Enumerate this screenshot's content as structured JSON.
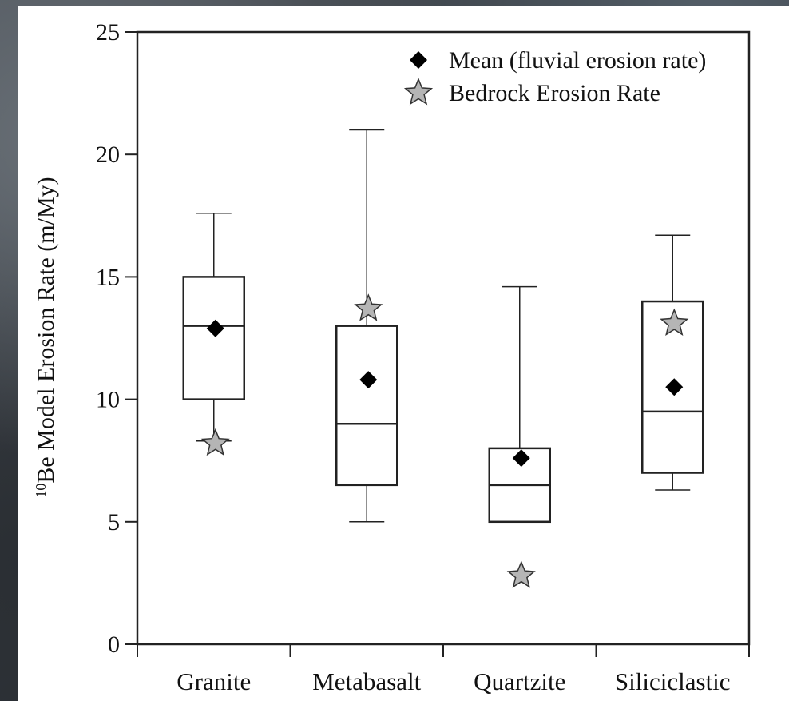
{
  "chart_data": {
    "type": "box",
    "title": "",
    "xlabel": "",
    "ylabel": "Be Model Erosion Rate (m/My)",
    "ylabel_superscript": "10",
    "ylim": [
      0,
      25
    ],
    "yticks": [
      "0",
      "5",
      "10",
      "15",
      "20",
      "25"
    ],
    "categories": [
      "Granite",
      "Metabasalt",
      "Quartzite",
      "Siliciclastic"
    ],
    "boxes": [
      {
        "category": "Granite",
        "whisker_low": 8.3,
        "q1": 10.0,
        "median": 13.0,
        "q3": 15.0,
        "whisker_high": 17.6
      },
      {
        "category": "Metabasalt",
        "whisker_low": 5.0,
        "q1": 6.5,
        "median": 9.0,
        "q3": 13.0,
        "whisker_high": 21.0
      },
      {
        "category": "Quartzite",
        "whisker_low": 5.0,
        "q1": 5.0,
        "median": 6.5,
        "q3": 8.0,
        "whisker_high": 14.6
      },
      {
        "category": "Siliciclastic",
        "whisker_low": 6.3,
        "q1": 7.0,
        "median": 9.5,
        "q3": 14.0,
        "whisker_high": 16.7
      }
    ],
    "series": [
      {
        "name": "Mean (fluvial erosion rate)",
        "marker": "diamond",
        "color": "#000000",
        "values": [
          12.9,
          10.8,
          7.6,
          10.5
        ]
      },
      {
        "name": "Bedrock Erosion Rate",
        "marker": "star",
        "color": "#b5b5b5",
        "values": [
          8.2,
          13.7,
          2.8,
          13.1
        ]
      }
    ],
    "legend_position": "top-right",
    "grid": false
  }
}
